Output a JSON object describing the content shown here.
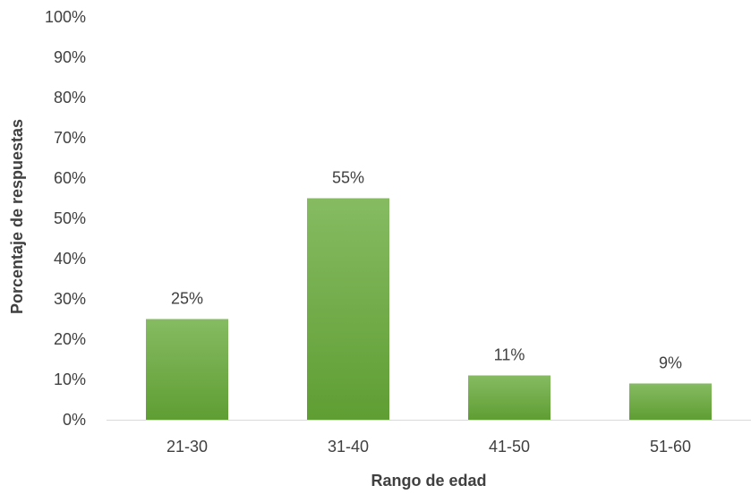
{
  "chart_data": {
    "type": "bar",
    "categories": [
      "21-30",
      "31-40",
      "41-50",
      "51-60"
    ],
    "values": [
      25,
      55,
      11,
      9
    ],
    "value_labels": [
      "25%",
      "55%",
      "11%",
      "9%"
    ],
    "xlabel": "Rango de edad",
    "ylabel": "Porcentaje de respuestas",
    "ylim": [
      0,
      100
    ],
    "yticks": [
      "0%",
      "10%",
      "20%",
      "30%",
      "40%",
      "50%",
      "60%",
      "70%",
      "80%",
      "90%",
      "100%"
    ],
    "grid": false,
    "legend": "none",
    "colors": {
      "bar_top": "#86bb62",
      "bar_bottom": "#5f9e33",
      "axis_line": "#d9d9d9",
      "text": "#404040"
    }
  }
}
